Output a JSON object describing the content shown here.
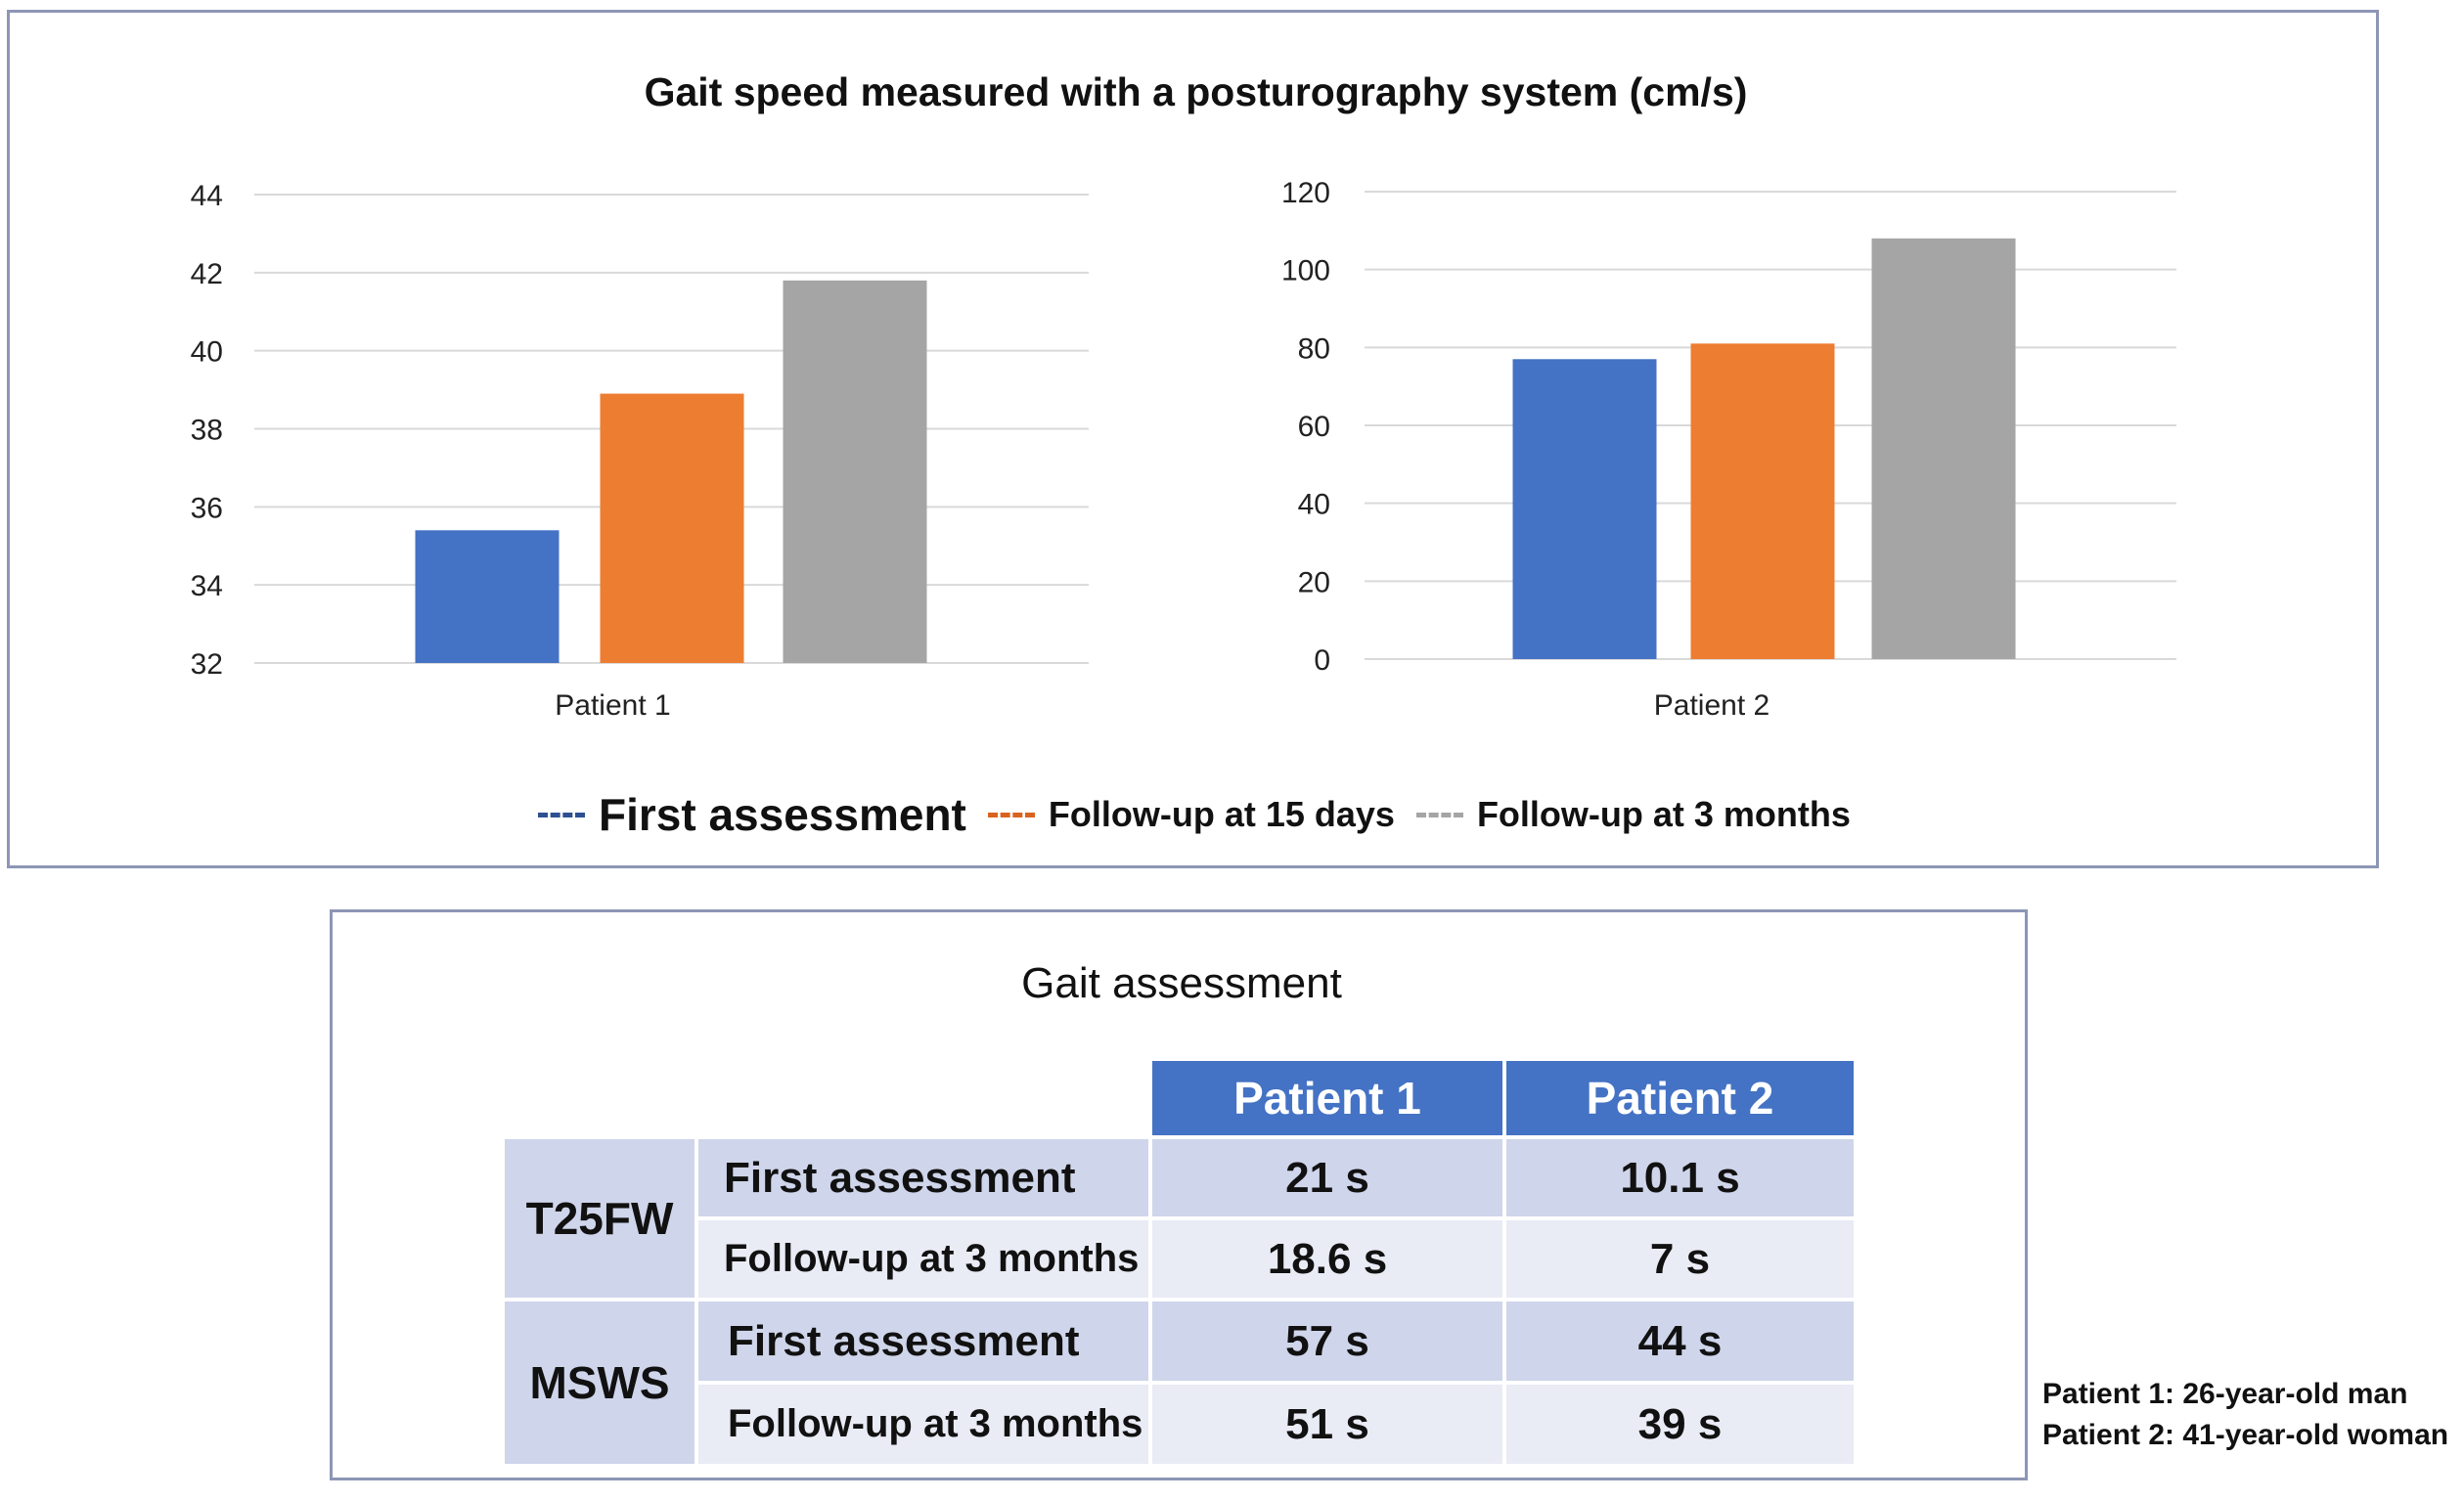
{
  "title": "Gait speed measured with a posturography system (cm/s)",
  "chart_data": [
    {
      "type": "bar",
      "categories": [
        "Patient 1"
      ],
      "series": [
        {
          "name": "First assessment",
          "values": [
            35.4
          ],
          "color": "#4472c4"
        },
        {
          "name": "Follow-up at 15 days",
          "values": [
            38.9
          ],
          "color": "#ed7d31"
        },
        {
          "name": "Follow-up at 3 months",
          "values": [
            41.8
          ],
          "color": "#a5a5a5"
        }
      ],
      "ylim": [
        32,
        44
      ],
      "yticks": [
        "32",
        "34",
        "36",
        "38",
        "40",
        "42",
        "44"
      ],
      "xlabel": "",
      "ylabel": "",
      "grid": true
    },
    {
      "type": "bar",
      "categories": [
        "Patient 2"
      ],
      "series": [
        {
          "name": "First assessment",
          "values": [
            77
          ],
          "color": "#4472c4"
        },
        {
          "name": "Follow-up at 15 days",
          "values": [
            81
          ],
          "color": "#ed7d31"
        },
        {
          "name": "Follow-up at 3 months",
          "values": [
            108
          ],
          "color": "#a5a5a5"
        }
      ],
      "ylim": [
        0,
        120
      ],
      "yticks": [
        "0",
        "20",
        "40",
        "60",
        "80",
        "100",
        "120"
      ],
      "xlabel": "",
      "ylabel": "",
      "grid": true
    }
  ],
  "legend": [
    {
      "label": "First assessment",
      "color": "#2e4f91",
      "size": "large"
    },
    {
      "label": "Follow-up at 15 days",
      "color": "#d9631e",
      "size": "normal"
    },
    {
      "label": "Follow-up at 3 months",
      "color": "#a5a5a5",
      "size": "normal"
    }
  ],
  "table": {
    "title": "Gait assessment",
    "columns": [
      "Patient 1",
      "Patient 2"
    ],
    "groups": [
      {
        "name": "T25FW",
        "rows": [
          {
            "label": "First assessment",
            "values": [
              "21 s",
              "10.1 s"
            ]
          },
          {
            "label": "Follow-up at 3 months",
            "values": [
              "18.6 s",
              "7 s"
            ]
          }
        ]
      },
      {
        "name": "MSWS",
        "rows": [
          {
            "label": "First assessment",
            "values": [
              "57 s",
              "44 s"
            ]
          },
          {
            "label": "Follow-up at 3 months",
            "values": [
              "51 s",
              "39 s"
            ]
          }
        ]
      }
    ]
  },
  "footnote": {
    "line1": "Patient 1: 26-year-old man",
    "line2": "Patient 2: 41-year-old woman"
  }
}
